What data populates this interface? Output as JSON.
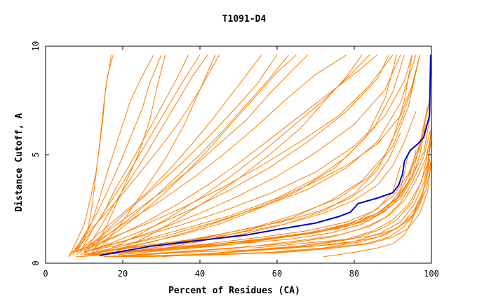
{
  "chart_data": {
    "type": "line",
    "title": "T1091-D4",
    "xlabel": "Percent of Residues (CA)",
    "ylabel": "Distance Cutoff, A",
    "xlim": [
      0,
      100
    ],
    "ylim": [
      0,
      10
    ],
    "xticks": [
      0,
      20,
      40,
      60,
      80,
      100
    ],
    "yticks": [
      0,
      5,
      10
    ],
    "colors": {
      "others": "#ff8000",
      "highlight": "#0000cc"
    },
    "highlight": {
      "x": [
        14,
        20,
        28,
        40,
        52,
        60,
        70,
        76,
        79,
        81,
        86,
        90,
        91.5,
        92.5,
        93,
        94.5,
        96.5,
        98,
        99.5,
        99.8
      ],
      "y": [
        0.35,
        0.55,
        0.8,
        1.05,
        1.3,
        1.55,
        1.85,
        2.15,
        2.35,
        2.75,
        3.0,
        3.25,
        3.6,
        4.1,
        4.7,
        5.2,
        5.5,
        5.8,
        6.8,
        9.6
      ]
    },
    "series": [
      {
        "x": [
          7,
          9,
          11,
          12,
          13,
          14,
          15,
          16,
          17.5
        ],
        "y": [
          0.4,
          0.9,
          1.6,
          2.6,
          4.0,
          5.5,
          7.2,
          8.6,
          9.6
        ]
      },
      {
        "x": [
          6,
          8,
          10,
          11.5,
          13,
          14,
          15,
          15.5,
          16.5,
          17
        ],
        "y": [
          0.3,
          1.0,
          1.8,
          2.9,
          4.1,
          5.4,
          6.9,
          8.0,
          9.0,
          9.6
        ]
      },
      {
        "x": [
          8,
          10,
          12,
          14,
          16,
          18,
          20,
          22,
          25,
          28
        ],
        "y": [
          0.5,
          1.1,
          1.9,
          3.0,
          4.2,
          5.3,
          6.4,
          7.5,
          8.6,
          9.6
        ]
      },
      {
        "x": [
          7,
          10,
          13,
          16,
          19,
          22,
          25,
          27,
          30
        ],
        "y": [
          0.4,
          1.3,
          2.2,
          3.3,
          4.5,
          5.8,
          7.1,
          8.3,
          9.6
        ]
      },
      {
        "x": [
          9,
          12,
          15,
          18,
          22,
          26,
          30,
          34,
          37
        ],
        "y": [
          0.5,
          1.5,
          2.3,
          3.4,
          4.6,
          5.9,
          7.2,
          8.5,
          9.6
        ]
      },
      {
        "x": [
          8,
          12,
          16,
          20,
          24,
          28,
          32,
          36,
          40
        ],
        "y": [
          0.6,
          1.5,
          2.6,
          3.7,
          4.9,
          6.1,
          7.3,
          8.5,
          9.6
        ]
      },
      {
        "x": [
          10,
          14,
          18,
          22,
          26,
          30,
          34,
          38,
          42
        ],
        "y": [
          0.5,
          1.6,
          2.8,
          3.9,
          5.0,
          6.2,
          7.4,
          8.6,
          9.6
        ]
      },
      {
        "x": [
          6,
          10,
          15,
          20,
          25,
          30,
          35,
          40,
          45
        ],
        "y": [
          0.3,
          1.2,
          2.2,
          3.2,
          4.3,
          5.4,
          6.6,
          8.0,
          9.6
        ]
      },
      {
        "x": [
          9,
          14,
          20,
          26,
          32,
          38,
          44,
          50,
          56
        ],
        "y": [
          0.6,
          1.4,
          2.3,
          3.2,
          4.3,
          5.5,
          6.8,
          8.2,
          9.6
        ]
      },
      {
        "x": [
          10,
          16,
          22,
          28,
          34,
          40,
          46,
          52,
          58,
          63
        ],
        "y": [
          0.5,
          1.3,
          2.1,
          3.0,
          4.0,
          5.0,
          6.1,
          7.3,
          8.5,
          9.6
        ]
      },
      {
        "x": [
          12,
          18,
          24,
          30,
          36,
          42,
          48,
          54,
          60,
          65
        ],
        "y": [
          0.6,
          1.4,
          2.2,
          3.1,
          4.1,
          5.2,
          6.4,
          7.6,
          8.8,
          9.6
        ]
      },
      {
        "x": [
          8,
          15,
          22,
          30,
          38,
          46,
          54,
          62,
          70,
          78
        ],
        "y": [
          0.5,
          1.2,
          2.0,
          2.9,
          3.9,
          5.0,
          6.2,
          7.5,
          8.7,
          9.6
        ]
      },
      {
        "x": [
          10,
          18,
          26,
          34,
          42,
          50,
          58,
          66,
          74,
          82,
          86
        ],
        "y": [
          0.6,
          1.2,
          1.9,
          2.7,
          3.6,
          4.6,
          5.7,
          6.8,
          7.9,
          9.0,
          9.6
        ]
      },
      {
        "x": [
          9,
          18,
          28,
          38,
          48,
          58,
          68,
          78,
          86,
          89
        ],
        "y": [
          0.4,
          1.0,
          1.7,
          2.5,
          3.4,
          4.4,
          5.6,
          7.0,
          8.5,
          9.6
        ]
      },
      {
        "x": [
          7,
          16,
          26,
          36,
          46,
          56,
          66,
          76,
          84,
          90
        ],
        "y": [
          0.5,
          1.1,
          1.8,
          2.6,
          3.5,
          4.5,
          5.6,
          6.8,
          8.2,
          9.6
        ]
      },
      {
        "x": [
          10,
          20,
          30,
          40,
          50,
          60,
          70,
          80,
          88,
          92
        ],
        "y": [
          0.5,
          1.0,
          1.6,
          2.3,
          3.1,
          4.0,
          5.1,
          6.4,
          8.0,
          9.6
        ]
      },
      {
        "x": [
          11,
          22,
          34,
          46,
          58,
          70,
          80,
          88,
          93,
          95
        ],
        "y": [
          0.6,
          1.1,
          1.7,
          2.4,
          3.2,
          4.2,
          5.4,
          6.8,
          8.4,
          9.6
        ]
      },
      {
        "x": [
          12,
          24,
          36,
          48,
          60,
          70,
          78,
          85,
          90,
          93
        ],
        "y": [
          0.6,
          1.0,
          1.6,
          2.2,
          3.0,
          3.9,
          4.9,
          6.2,
          7.9,
          9.6
        ]
      },
      {
        "x": [
          14,
          25,
          35,
          45,
          55,
          65,
          75,
          83,
          88,
          91
        ],
        "y": [
          0.5,
          0.9,
          1.3,
          1.8,
          2.5,
          3.3,
          4.4,
          5.8,
          7.6,
          9.6
        ]
      },
      {
        "x": [
          10,
          20,
          32,
          44,
          56,
          68,
          78,
          86,
          92,
          96
        ],
        "y": [
          0.4,
          0.8,
          1.3,
          1.9,
          2.6,
          3.4,
          4.4,
          5.6,
          7.4,
          9.6
        ]
      },
      {
        "x": [
          18,
          28,
          38,
          48,
          58,
          68,
          78,
          86,
          92,
          95,
          97
        ],
        "y": [
          0.6,
          1.0,
          1.5,
          2.1,
          2.8,
          3.6,
          4.5,
          5.5,
          6.8,
          8.2,
          9.6
        ]
      },
      {
        "x": [
          20,
          35,
          50,
          62,
          72,
          80,
          86,
          90,
          93,
          95
        ],
        "y": [
          0.5,
          0.9,
          1.3,
          1.8,
          2.4,
          3.2,
          4.3,
          5.7,
          7.5,
          9.6
        ]
      },
      {
        "x": [
          15,
          28,
          42,
          55,
          66,
          76,
          84,
          90,
          94,
          97
        ],
        "y": [
          0.4,
          0.8,
          1.2,
          1.7,
          2.3,
          3.0,
          4.0,
          5.4,
          7.2,
          9.6
        ]
      },
      {
        "x": [
          8,
          14,
          20,
          27,
          34,
          41,
          48,
          55,
          60
        ],
        "y": [
          0.4,
          1.2,
          2.2,
          3.3,
          4.4,
          5.6,
          6.9,
          8.3,
          9.6
        ]
      },
      {
        "x": [
          11,
          17,
          24,
          31,
          38,
          45,
          52,
          58,
          64,
          68
        ],
        "y": [
          0.7,
          1.6,
          2.5,
          3.4,
          4.4,
          5.5,
          6.6,
          7.8,
          8.9,
          9.6
        ]
      },
      {
        "x": [
          13,
          19,
          25,
          31,
          36,
          40,
          44
        ],
        "y": [
          0.5,
          1.7,
          3.2,
          4.8,
          6.4,
          8.0,
          9.6
        ]
      },
      {
        "x": [
          12,
          16,
          20,
          24,
          27,
          29,
          31
        ],
        "y": [
          0.4,
          1.8,
          3.4,
          5.0,
          6.6,
          8.2,
          9.6
        ]
      },
      {
        "x": [
          18,
          26,
          34,
          42,
          50,
          58,
          66,
          72,
          78,
          82
        ],
        "y": [
          0.5,
          1.2,
          2.0,
          2.9,
          3.9,
          5.0,
          6.2,
          7.4,
          8.6,
          9.6
        ]
      },
      {
        "x": [
          16,
          24,
          32,
          40,
          48,
          56,
          64,
          72,
          79,
          84
        ],
        "y": [
          0.6,
          1.3,
          2.1,
          3.0,
          4.0,
          5.1,
          6.3,
          7.5,
          8.7,
          9.6
        ]
      },
      {
        "x": [
          28,
          40,
          52,
          64,
          74,
          82,
          88,
          92,
          95,
          97
        ],
        "y": [
          0.6,
          1.0,
          1.5,
          2.1,
          2.9,
          3.8,
          5.0,
          6.5,
          8.1,
          9.6
        ]
      },
      {
        "x": [
          8,
          20,
          35,
          50,
          62,
          72,
          80,
          86,
          90,
          92
        ],
        "y": [
          0.3,
          0.5,
          0.7,
          0.9,
          1.2,
          1.5,
          1.9,
          2.5,
          3.3,
          4.5
        ]
      },
      {
        "x": [
          9,
          22,
          36,
          50,
          63,
          74,
          82,
          88,
          92,
          94
        ],
        "y": [
          0.3,
          0.5,
          0.7,
          0.9,
          1.1,
          1.4,
          1.8,
          2.4,
          3.4,
          5.0
        ]
      },
      {
        "x": [
          10,
          24,
          38,
          52,
          65,
          76,
          84,
          90,
          94,
          96
        ],
        "y": [
          0.4,
          0.6,
          0.8,
          1.0,
          1.3,
          1.6,
          2.0,
          2.7,
          3.7,
          5.2
        ]
      },
      {
        "x": [
          11,
          25,
          40,
          55,
          68,
          78,
          86,
          91,
          95,
          97
        ],
        "y": [
          0.4,
          0.6,
          0.8,
          1.1,
          1.4,
          1.8,
          2.3,
          3.0,
          4.0,
          5.5
        ]
      },
      {
        "x": [
          12,
          26,
          42,
          56,
          68,
          78,
          85,
          90,
          94,
          97,
          99
        ],
        "y": [
          0.4,
          0.6,
          0.9,
          1.2,
          1.5,
          1.9,
          2.4,
          3.1,
          4.1,
          5.5,
          7.2
        ]
      },
      {
        "x": [
          13,
          28,
          44,
          58,
          70,
          80,
          86,
          91,
          94,
          97,
          99.5
        ],
        "y": [
          0.4,
          0.6,
          0.8,
          1.1,
          1.4,
          1.8,
          2.3,
          3.0,
          4.0,
          5.3,
          7.5
        ]
      },
      {
        "x": [
          14,
          30,
          46,
          60,
          72,
          81,
          87,
          92,
          95,
          98,
          99.6
        ],
        "y": [
          0.4,
          0.6,
          0.9,
          1.2,
          1.5,
          1.9,
          2.4,
          3.1,
          4.0,
          5.1,
          6.7
        ]
      },
      {
        "x": [
          15,
          32,
          48,
          62,
          74,
          82,
          88,
          92,
          95,
          98,
          99.7
        ],
        "y": [
          0.3,
          0.5,
          0.7,
          0.9,
          1.2,
          1.6,
          2.1,
          2.8,
          3.7,
          4.9,
          6.1
        ]
      },
      {
        "x": [
          16,
          34,
          50,
          64,
          76,
          84,
          89,
          93,
          96,
          98.5,
          99.8
        ],
        "y": [
          0.3,
          0.5,
          0.7,
          1.0,
          1.3,
          1.7,
          2.2,
          2.9,
          3.8,
          4.8,
          5.8
        ]
      },
      {
        "x": [
          17,
          36,
          52,
          66,
          78,
          85,
          90,
          94,
          97,
          99,
          99.9
        ],
        "y": [
          0.3,
          0.5,
          0.6,
          0.8,
          1.1,
          1.5,
          2.0,
          2.7,
          3.6,
          4.6,
          5.6
        ]
      },
      {
        "x": [
          18,
          38,
          54,
          68,
          79,
          86,
          91,
          95,
          97.5,
          99.2
        ],
        "y": [
          0.3,
          0.4,
          0.6,
          0.8,
          1.1,
          1.5,
          2.0,
          2.8,
          3.8,
          5.2
        ]
      },
      {
        "x": [
          20,
          40,
          56,
          70,
          80,
          87,
          92,
          95.5,
          98,
          99.5
        ],
        "y": [
          0.3,
          0.4,
          0.6,
          0.8,
          1.0,
          1.4,
          1.9,
          2.7,
          3.7,
          5.0
        ]
      },
      {
        "x": [
          22,
          42,
          58,
          72,
          82,
          88,
          92.5,
          96,
          98.5,
          99.6
        ],
        "y": [
          0.3,
          0.4,
          0.5,
          0.7,
          1.0,
          1.3,
          1.8,
          2.6,
          3.6,
          4.8
        ]
      },
      {
        "x": [
          24,
          44,
          60,
          73,
          83,
          89,
          93,
          96.5,
          98.8,
          99.8
        ],
        "y": [
          0.3,
          0.4,
          0.5,
          0.7,
          0.9,
          1.2,
          1.7,
          2.5,
          3.5,
          4.7
        ]
      },
      {
        "x": [
          26,
          46,
          62,
          75,
          84,
          90,
          94,
          97,
          99,
          99.9
        ],
        "y": [
          0.3,
          0.4,
          0.5,
          0.7,
          0.9,
          1.2,
          1.6,
          2.3,
          3.3,
          4.6
        ]
      },
      {
        "x": [
          10,
          22,
          36,
          50,
          62,
          72,
          80,
          86,
          90,
          93,
          96
        ],
        "y": [
          0.4,
          0.7,
          1.0,
          1.4,
          1.8,
          2.3,
          2.9,
          3.6,
          4.5,
          5.6,
          7.0
        ]
      },
      {
        "x": [
          12,
          25,
          38,
          50,
          61,
          71,
          79,
          85,
          89,
          92
        ],
        "y": [
          0.5,
          0.8,
          1.1,
          1.5,
          1.9,
          2.4,
          3.0,
          3.8,
          4.8,
          6.0
        ]
      },
      {
        "x": [
          19,
          32,
          45,
          58,
          70,
          80,
          87,
          92,
          95,
          97,
          98.5
        ],
        "y": [
          0.4,
          0.6,
          0.8,
          1.1,
          1.4,
          1.8,
          2.3,
          3.0,
          3.9,
          5.0,
          6.4
        ]
      },
      {
        "x": [
          72,
          80,
          86,
          90,
          93,
          95,
          97
        ],
        "y": [
          0.3,
          0.5,
          0.7,
          0.9,
          1.3,
          2.0,
          3.0
        ]
      },
      {
        "x": [
          54,
          66,
          78,
          86,
          91,
          95,
          97.5,
          99,
          99.8
        ],
        "y": [
          0.7,
          0.9,
          1.1,
          1.3,
          1.6,
          2.1,
          3.0,
          4.3,
          6.0
        ]
      },
      {
        "x": [
          30,
          48,
          64,
          77,
          86,
          91,
          95,
          97.5,
          99.2,
          99.9
        ],
        "y": [
          0.3,
          0.5,
          0.7,
          0.9,
          1.2,
          1.6,
          2.2,
          3.1,
          4.4,
          6.2
        ]
      }
    ]
  }
}
